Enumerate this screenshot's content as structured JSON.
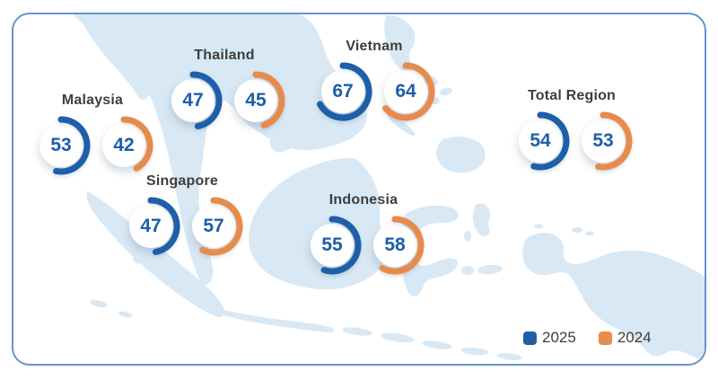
{
  "card": {
    "background": "#FFFFFF",
    "border_color": "#6593CD"
  },
  "map": {
    "name": "Southeast Asia",
    "fill": "#D8E8F4"
  },
  "legend": {
    "items": [
      {
        "label": "2025",
        "color": "#1D5FA8"
      },
      {
        "label": "2024",
        "color": "#E78B4D"
      }
    ]
  },
  "chart_data": {
    "type": "donut-gauge-pairs",
    "description": "Paired donut gauges per country over a Southeast Asia map comparing 2025 vs 2024 scores",
    "max_value": 100,
    "series": [
      {
        "key": "v2025",
        "label": "2025",
        "color": "#1D5FA8"
      },
      {
        "key": "v2024",
        "label": "2024",
        "color": "#E78B4D"
      }
    ],
    "series_colors": {
      "v2025": "#1D5FA8",
      "v2024": "#E78B4D"
    },
    "groups": [
      {
        "label": "Malaysia",
        "v2025": 53,
        "v2024": 42
      },
      {
        "label": "Thailand",
        "v2025": 47,
        "v2024": 45
      },
      {
        "label": "Vietnam",
        "v2025": 67,
        "v2024": 64
      },
      {
        "label": "Singapore",
        "v2025": 47,
        "v2024": 57
      },
      {
        "label": "Indonesia",
        "v2025": 55,
        "v2024": 58
      },
      {
        "label": "Total Region",
        "v2025": 54,
        "v2024": 53
      }
    ]
  },
  "text_colors": {
    "label": "#3E3E3E",
    "value": "#1D5FA8"
  }
}
